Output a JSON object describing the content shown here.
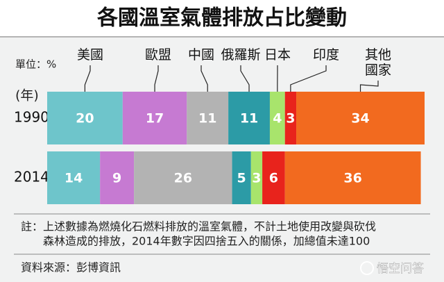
{
  "chart_data": {
    "type": "stacked-bar-horizontal",
    "title": "各國溫室氣體排放占比變動",
    "unit_label": "單位：%",
    "category_axis_label": "(年)",
    "categories": [
      "1990",
      "2014"
    ],
    "xlim": [
      0,
      100
    ],
    "series": [
      {
        "name": "美國",
        "color": "#6ec5cb",
        "values": [
          20,
          14
        ]
      },
      {
        "name": "歐盟",
        "color": "#c67ad2",
        "values": [
          17,
          9
        ]
      },
      {
        "name": "中國",
        "color": "#b3b3b3",
        "values": [
          11,
          26
        ]
      },
      {
        "name": "俄羅斯",
        "color": "#2c9ba6",
        "values": [
          11,
          5
        ]
      },
      {
        "name": "日本",
        "color": "#a8e46c",
        "values": [
          4,
          3
        ]
      },
      {
        "name": "印度",
        "color": "#e8231c",
        "values": [
          3,
          6
        ]
      },
      {
        "name": "其他國家",
        "color": "#f26a1f",
        "values": [
          34,
          36
        ]
      }
    ],
    "note": [
      "註：上述數據為燃燒化石燃料排放的溫室氣體，不計土地使用改變與砍伐",
      "森林造成的排放，2014年數字因四捨五入的關係，加總值未達100"
    ],
    "source": "資料來源：彭博資訊",
    "watermark": "悟空问答"
  }
}
